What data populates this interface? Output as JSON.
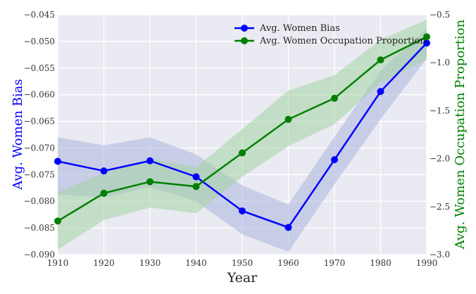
{
  "chart_data": {
    "type": "line",
    "xlabel": "Year",
    "x": [
      1910,
      1920,
      1930,
      1940,
      1950,
      1960,
      1970,
      1980,
      1990
    ],
    "xticks": [
      "1910",
      "1920",
      "1930",
      "1940",
      "1950",
      "1960",
      "1970",
      "1980",
      "1990"
    ],
    "xlim": [
      1910,
      1990
    ],
    "y_left": {
      "label": "Avg. Women Bias",
      "color": "#0000ff",
      "lim": [
        -0.09,
        -0.045
      ],
      "ticks": [
        "−0.045",
        "−0.050",
        "−0.055",
        "−0.060",
        "−0.065",
        "−0.070",
        "−0.075",
        "−0.080",
        "−0.085",
        "−0.090"
      ],
      "tick_values": [
        -0.045,
        -0.05,
        -0.055,
        -0.06,
        -0.065,
        -0.07,
        -0.075,
        -0.08,
        -0.085,
        -0.09
      ]
    },
    "y_right": {
      "label": "Avg. Women Occupation Proportion",
      "color": "#008000",
      "lim": [
        -3.0,
        -0.5
      ],
      "ticks": [
        "−0.5",
        "−1.0",
        "−1.5",
        "−2.0",
        "−2.5",
        "−3.0"
      ],
      "tick_values": [
        -0.5,
        -1.0,
        -1.5,
        -2.0,
        -2.5,
        -3.0
      ]
    },
    "series": [
      {
        "name": "Avg. Women Bias",
        "axis": "left",
        "color": "#0000ff",
        "band_color": "#aab4dd",
        "values": [
          -0.0725,
          -0.0743,
          -0.0724,
          -0.0754,
          -0.0818,
          -0.0849,
          -0.0722,
          -0.0594,
          -0.0503
        ],
        "lower": [
          -0.0787,
          -0.0793,
          -0.0773,
          -0.08,
          -0.0862,
          -0.0895,
          -0.0768,
          -0.0646,
          -0.0532
        ],
        "upper": [
          -0.068,
          -0.0695,
          -0.068,
          -0.0712,
          -0.077,
          -0.0806,
          -0.0679,
          -0.0555,
          -0.0475
        ]
      },
      {
        "name": "Avg. Women Occupation Proportion",
        "axis": "right",
        "color": "#008000",
        "band_color": "#a3d3a3",
        "values": [
          -2.65,
          -2.36,
          -2.24,
          -2.29,
          -1.94,
          -1.59,
          -1.37,
          -0.97,
          -0.73
        ],
        "lower": [
          -2.95,
          -2.64,
          -2.51,
          -2.57,
          -2.19,
          -1.87,
          -1.64,
          -1.21,
          -0.97
        ],
        "upper": [
          -2.35,
          -2.15,
          -2.0,
          -2.09,
          -1.69,
          -1.29,
          -1.13,
          -0.76,
          -0.55
        ]
      }
    ],
    "grid": true,
    "legend_position": "top-right"
  }
}
